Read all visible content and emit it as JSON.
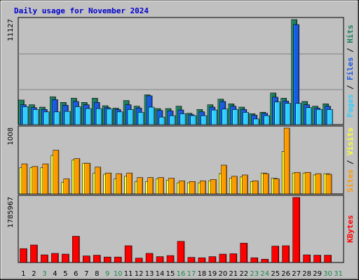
{
  "title": "Daily usage for November 2024",
  "colors": {
    "frame_bg": "#c0c0c0",
    "plot_bg": "#c0c0c0",
    "grid": "#808080",
    "hits": "#1e7f5f",
    "files": "#1a5ae0",
    "pages": "#33ccff",
    "visits": "#ffff33",
    "sites": "#ff9900",
    "kbytes": "#ff0000",
    "title": "#0000cc",
    "weekday_label": "#000000",
    "weekend_label": "#1a8a4a"
  },
  "chart_data": [
    {
      "type": "bar",
      "panel": "hits-files-pages",
      "categories": [
        "1",
        "2",
        "3",
        "4",
        "5",
        "6",
        "7",
        "8",
        "9",
        "10",
        "11",
        "12",
        "13",
        "14",
        "15",
        "16",
        "17",
        "18",
        "19",
        "20",
        "21",
        "22",
        "23",
        "24",
        "25",
        "26",
        "27",
        "28",
        "29",
        "30",
        "31"
      ],
      "ymax_label": "11127",
      "ylim": [
        0,
        11127
      ],
      "series": [
        {
          "name": "Hits",
          "values": [
            2600,
            2100,
            1850,
            2950,
            2350,
            2800,
            2350,
            2800,
            2000,
            1750,
            2550,
            1950,
            3150,
            1700,
            1700,
            1950,
            1200,
            1600,
            2100,
            2700,
            2200,
            1850,
            1150,
            1300,
            3350,
            2800,
            11127,
            2450,
            1950,
            2200,
            0
          ]
        },
        {
          "name": "Files",
          "values": [
            2100,
            1800,
            1600,
            2650,
            2050,
            2450,
            2100,
            2350,
            1800,
            1600,
            2100,
            1750,
            3050,
            1500,
            1450,
            1550,
            1050,
            1350,
            1850,
            2450,
            1950,
            1600,
            1000,
            1200,
            2900,
            2500,
            10600,
            2100,
            1750,
            1950,
            0
          ]
        },
        {
          "name": "Pages",
          "values": [
            1900,
            1600,
            1350,
            1350,
            1400,
            1900,
            1700,
            1700,
            1650,
            1350,
            1600,
            1300,
            1850,
            800,
            950,
            1150,
            950,
            950,
            1550,
            1650,
            1600,
            1300,
            600,
            950,
            2400,
            2250,
            2250,
            1800,
            1600,
            1600,
            0
          ]
        }
      ],
      "legend": [
        "Pages",
        "Files",
        "Hits"
      ]
    },
    {
      "type": "bar",
      "panel": "visits-sites",
      "categories": [
        "1",
        "2",
        "3",
        "4",
        "5",
        "6",
        "7",
        "8",
        "9",
        "10",
        "11",
        "12",
        "13",
        "14",
        "15",
        "16",
        "17",
        "18",
        "19",
        "20",
        "21",
        "22",
        "23",
        "24",
        "25",
        "26",
        "27",
        "28",
        "29",
        "30",
        "31"
      ],
      "ymax_label": "1008",
      "ylim": [
        0,
        1008
      ],
      "series": [
        {
          "name": "Visits",
          "values": [
            400,
            400,
            400,
            590,
            180,
            520,
            470,
            320,
            300,
            230,
            270,
            190,
            190,
            230,
            210,
            170,
            170,
            170,
            200,
            310,
            240,
            260,
            190,
            320,
            240,
            650,
            320,
            320,
            290,
            310,
            0
          ]
        },
        {
          "name": "Sites",
          "values": [
            460,
            420,
            460,
            670,
            230,
            540,
            470,
            410,
            320,
            310,
            320,
            250,
            250,
            250,
            240,
            200,
            190,
            200,
            220,
            440,
            270,
            290,
            200,
            310,
            230,
            1008,
            330,
            330,
            310,
            300,
            0
          ]
        }
      ],
      "legend": [
        "Sites",
        "Visits"
      ]
    },
    {
      "type": "bar",
      "panel": "kbytes",
      "categories": [
        "1",
        "2",
        "3",
        "4",
        "5",
        "6",
        "7",
        "8",
        "9",
        "10",
        "11",
        "12",
        "13",
        "14",
        "15",
        "16",
        "17",
        "18",
        "19",
        "20",
        "21",
        "22",
        "23",
        "24",
        "25",
        "26",
        "27",
        "28",
        "29",
        "30",
        "31"
      ],
      "ymax_label": "1785967",
      "ylim": [
        0,
        1785967
      ],
      "series": [
        {
          "name": "KBytes",
          "values": [
            380000,
            480000,
            210000,
            250000,
            230000,
            720000,
            180000,
            200000,
            150000,
            150000,
            460000,
            120000,
            250000,
            160000,
            190000,
            580000,
            140000,
            130000,
            160000,
            230000,
            240000,
            530000,
            130000,
            90000,
            450000,
            460000,
            1785967,
            210000,
            200000,
            200000,
            0
          ]
        }
      ],
      "legend": [
        "KBytes"
      ]
    }
  ],
  "legend_text": {
    "panel1": [
      {
        "text": "Pages",
        "color": "#33ccff"
      },
      {
        "text": " / ",
        "color": "#000000"
      },
      {
        "text": "Files",
        "color": "#1a5ae0"
      },
      {
        "text": " / ",
        "color": "#000000"
      },
      {
        "text": "Hits",
        "color": "#1e7f5f"
      }
    ],
    "panel2": [
      {
        "text": "Sites",
        "color": "#ff9900"
      },
      {
        "text": " / ",
        "color": "#000000"
      },
      {
        "text": "Visits",
        "color": "#ffff33"
      }
    ],
    "panel3": [
      {
        "text": "KBytes",
        "color": "#ff0000"
      }
    ]
  },
  "weekend_days": [
    "3",
    "9",
    "10",
    "16",
    "17",
    "23",
    "24",
    "30",
    "31"
  ]
}
